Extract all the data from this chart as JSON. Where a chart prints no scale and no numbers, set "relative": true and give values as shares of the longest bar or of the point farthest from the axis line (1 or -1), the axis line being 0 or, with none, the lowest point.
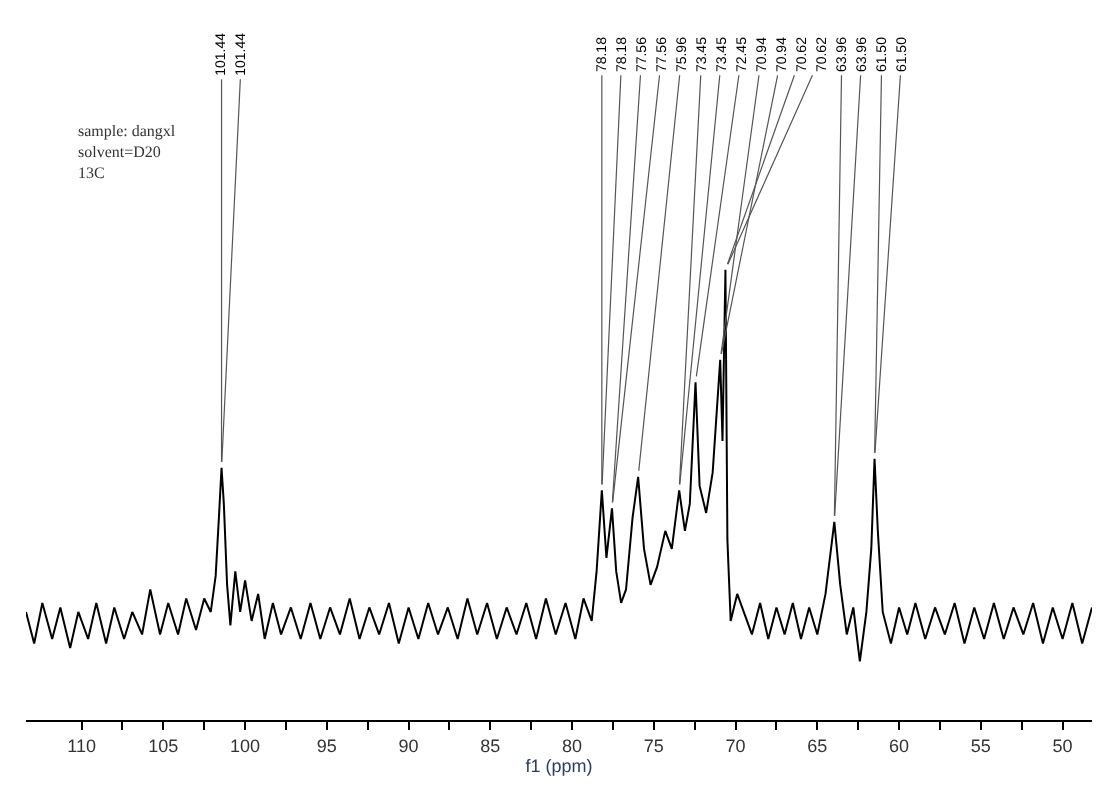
{
  "chart_data": {
    "type": "line",
    "relative": true,
    "xlabel": "f1 (ppm)",
    "marker": "none",
    "line_style": "solid",
    "xlim": [
      113.4,
      48.2
    ],
    "xticks": [
      110,
      {
        "value": 107.5,
        "label": null
      },
      105,
      {
        "value": 102.5,
        "label": null
      },
      100,
      {
        "value": 97.5,
        "label": null
      },
      95,
      {
        "value": 92.5,
        "label": null
      },
      90,
      {
        "value": 87.5,
        "label": null
      },
      85,
      {
        "value": 82.5,
        "label": null
      },
      80,
      {
        "value": 77.5,
        "label": null
      },
      75,
      {
        "value": 72.5,
        "label": null
      },
      70,
      {
        "value": 67.5,
        "label": null
      },
      65,
      {
        "value": 62.5,
        "label": null
      },
      60,
      {
        "value": 57.5,
        "label": null
      },
      55,
      {
        "value": 52.5,
        "label": null
      },
      50
    ],
    "series": [
      {
        "color": "#000000",
        "x": [
          113.4,
          112.9,
          112.4,
          111.8,
          111.3,
          110.7,
          110.2,
          109.6,
          109.1,
          108.5,
          108.0,
          107.4,
          106.9,
          106.3,
          105.8,
          105.2,
          104.7,
          104.1,
          103.6,
          103.0,
          102.5,
          102.1,
          101.8,
          101.6,
          101.44,
          101.3,
          101.1,
          100.9,
          100.6,
          100.3,
          100.0,
          99.6,
          99.2,
          98.8,
          98.3,
          97.8,
          97.2,
          96.6,
          96.0,
          95.4,
          94.8,
          94.2,
          93.6,
          93.0,
          92.4,
          91.8,
          91.2,
          90.6,
          90.0,
          89.4,
          88.8,
          88.2,
          87.6,
          87.0,
          86.4,
          85.8,
          85.2,
          84.6,
          84.0,
          83.4,
          82.8,
          82.2,
          81.6,
          81.0,
          80.4,
          79.8,
          79.3,
          78.8,
          78.5,
          78.18,
          77.9,
          77.56,
          77.3,
          77.0,
          76.7,
          76.3,
          75.96,
          75.6,
          75.2,
          74.8,
          74.3,
          73.9,
          73.45,
          73.1,
          72.8,
          72.45,
          72.2,
          71.8,
          71.4,
          70.94,
          70.8,
          70.62,
          70.5,
          70.3,
          69.9,
          69.5,
          69.0,
          68.5,
          68.0,
          67.5,
          67.0,
          66.5,
          66.0,
          65.5,
          65.0,
          64.5,
          63.96,
          63.6,
          63.2,
          62.8,
          62.4,
          62.0,
          61.7,
          61.5,
          61.3,
          61.0,
          60.5,
          60.0,
          59.5,
          59.0,
          58.4,
          57.8,
          57.2,
          56.6,
          56.0,
          55.4,
          54.8,
          54.2,
          53.6,
          53.0,
          52.4,
          51.8,
          51.2,
          50.6,
          50.0,
          49.4,
          48.8,
          48.2
        ],
        "values": [
          0.24,
          0.17,
          0.26,
          0.18,
          0.25,
          0.16,
          0.24,
          0.18,
          0.26,
          0.17,
          0.25,
          0.18,
          0.24,
          0.19,
          0.29,
          0.19,
          0.26,
          0.19,
          0.27,
          0.2,
          0.27,
          0.24,
          0.32,
          0.45,
          0.56,
          0.48,
          0.3,
          0.21,
          0.33,
          0.24,
          0.31,
          0.22,
          0.28,
          0.18,
          0.26,
          0.19,
          0.25,
          0.18,
          0.26,
          0.18,
          0.25,
          0.19,
          0.27,
          0.18,
          0.25,
          0.19,
          0.26,
          0.17,
          0.25,
          0.18,
          0.26,
          0.19,
          0.25,
          0.18,
          0.27,
          0.19,
          0.26,
          0.18,
          0.25,
          0.19,
          0.26,
          0.18,
          0.27,
          0.19,
          0.26,
          0.18,
          0.27,
          0.22,
          0.33,
          0.51,
          0.36,
          0.47,
          0.33,
          0.26,
          0.29,
          0.45,
          0.54,
          0.38,
          0.3,
          0.34,
          0.42,
          0.38,
          0.51,
          0.42,
          0.48,
          0.75,
          0.52,
          0.46,
          0.55,
          0.8,
          0.62,
          1.0,
          0.4,
          0.22,
          0.28,
          0.24,
          0.19,
          0.26,
          0.18,
          0.25,
          0.19,
          0.26,
          0.18,
          0.25,
          0.19,
          0.28,
          0.44,
          0.3,
          0.19,
          0.25,
          0.13,
          0.24,
          0.38,
          0.58,
          0.42,
          0.24,
          0.17,
          0.25,
          0.19,
          0.26,
          0.18,
          0.25,
          0.19,
          0.26,
          0.17,
          0.25,
          0.18,
          0.26,
          0.18,
          0.25,
          0.19,
          0.26,
          0.17,
          0.25,
          0.18,
          0.26,
          0.17,
          0.25
        ]
      }
    ],
    "annotations": [
      "sample: dangxl\nsolvent=D20\n13C",
      {
        "text": "101.44",
        "x": 101.44,
        "y": 0.56
      },
      {
        "text": "101.44",
        "x": 101.44,
        "y": 0.56
      },
      {
        "text": "78.18",
        "x": 78.18,
        "y": 0.51
      },
      {
        "text": "78.18",
        "x": 78.18,
        "y": 0.51
      },
      {
        "text": "77.56",
        "x": 77.56,
        "y": 0.47
      },
      {
        "text": "77.56",
        "x": 77.56,
        "y": 0.47
      },
      {
        "text": "75.96",
        "x": 75.96,
        "y": 0.54
      },
      {
        "text": "73.45",
        "x": 73.45,
        "y": 0.51
      },
      {
        "text": "73.45",
        "x": 73.45,
        "y": 0.51
      },
      {
        "text": "72.45",
        "x": 72.45,
        "y": 0.75
      },
      {
        "text": "70.94",
        "x": 70.94,
        "y": 0.8
      },
      {
        "text": "70.94",
        "x": 70.94,
        "y": 0.8
      },
      {
        "text": "70.62",
        "x": 70.62,
        "y": 1.0
      },
      {
        "text": "70.62",
        "x": 70.62,
        "y": 1.0
      },
      {
        "text": "63.96",
        "x": 63.96,
        "y": 0.44
      },
      {
        "text": "63.96",
        "x": 63.96,
        "y": 0.44
      },
      {
        "text": "61.50",
        "x": 61.5,
        "y": 0.58
      },
      {
        "text": "61.50",
        "x": 61.5,
        "y": 0.58
      }
    ]
  }
}
